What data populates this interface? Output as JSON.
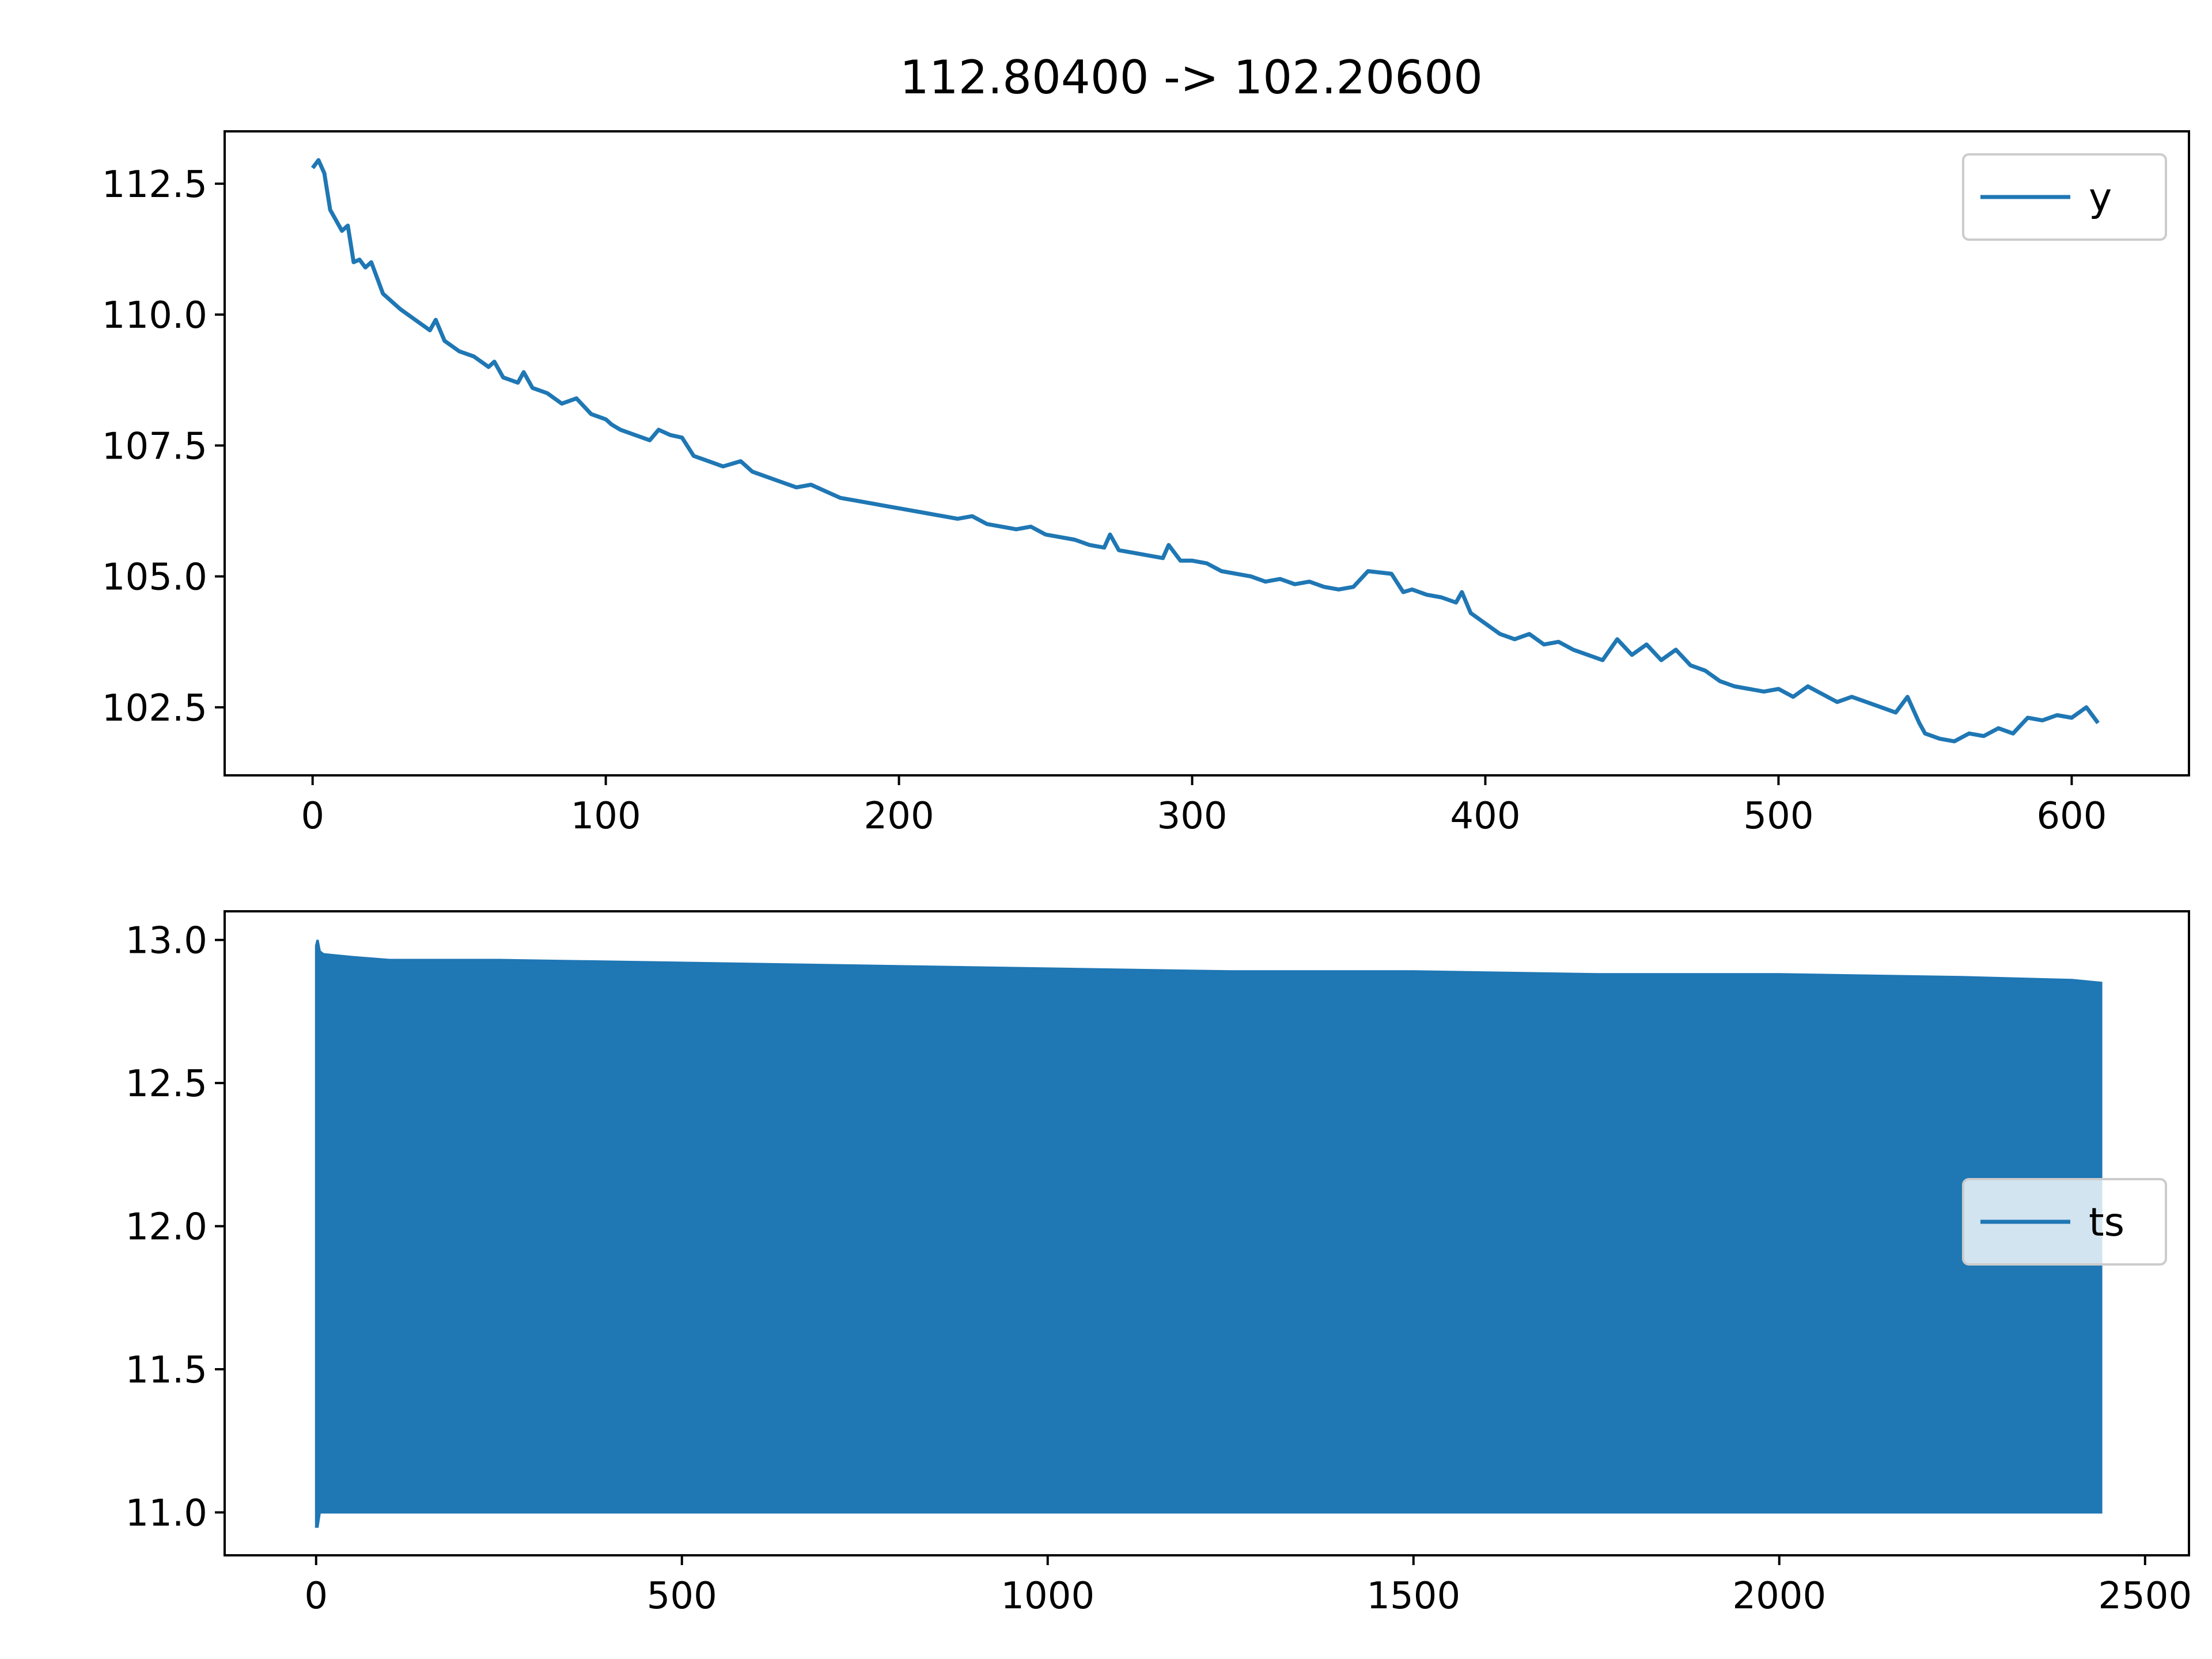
{
  "figure_title": "112.80400 -> 102.20600",
  "colors": {
    "series": "#1f77b4",
    "axis": "#000000",
    "legend_border": "#cccccc"
  },
  "chart_data": [
    {
      "type": "line",
      "title": "112.80400 -> 102.20600",
      "xlabel": "",
      "ylabel": "",
      "xlim": [
        -30,
        640
      ],
      "ylim": [
        101.2,
        113.5
      ],
      "xticks": [
        0,
        100,
        200,
        300,
        400,
        500,
        600
      ],
      "yticks": [
        102.5,
        105.0,
        107.5,
        110.0,
        112.5
      ],
      "xtick_labels": [
        "0",
        "100",
        "200",
        "300",
        "400",
        "500",
        "600"
      ],
      "ytick_labels": [
        "102.5",
        "105.0",
        "107.5",
        "110.0",
        "112.5"
      ],
      "grid": false,
      "legend_position": "top-right",
      "series": [
        {
          "name": "y",
          "x": [
            0,
            2,
            4,
            6,
            8,
            10,
            12,
            14,
            16,
            18,
            20,
            22,
            24,
            26,
            28,
            30,
            35,
            40,
            42,
            45,
            50,
            55,
            60,
            62,
            65,
            70,
            72,
            75,
            80,
            85,
            90,
            95,
            100,
            102,
            105,
            110,
            115,
            118,
            122,
            126,
            130,
            135,
            140,
            146,
            150,
            155,
            160,
            165,
            170,
            176,
            180,
            185,
            190,
            195,
            200,
            210,
            220,
            225,
            230,
            240,
            245,
            250,
            255,
            260,
            265,
            270,
            272,
            275,
            280,
            290,
            292,
            296,
            300,
            305,
            310,
            320,
            325,
            330,
            335,
            340,
            345,
            350,
            355,
            360,
            368,
            372,
            375,
            380,
            385,
            390,
            392,
            395,
            400,
            405,
            410,
            415,
            420,
            425,
            430,
            435,
            440,
            445,
            450,
            455,
            460,
            465,
            470,
            475,
            480,
            485,
            490,
            495,
            500,
            505,
            510,
            515,
            520,
            525,
            530,
            535,
            540,
            544,
            548,
            550,
            555,
            560,
            565,
            570,
            575,
            580,
            585,
            590,
            595,
            600,
            605,
            609
          ],
          "y": [
            112.8,
            112.95,
            112.7,
            112.0,
            111.8,
            111.6,
            111.7,
            111.0,
            111.05,
            110.9,
            111.0,
            110.7,
            110.4,
            110.3,
            110.2,
            110.1,
            109.9,
            109.7,
            109.9,
            109.5,
            109.3,
            109.2,
            109.0,
            109.1,
            108.8,
            108.7,
            108.9,
            108.6,
            108.5,
            108.3,
            108.4,
            108.1,
            108.0,
            107.9,
            107.8,
            107.7,
            107.6,
            107.8,
            107.7,
            107.65,
            107.3,
            107.2,
            107.1,
            107.2,
            107.0,
            106.9,
            106.8,
            106.7,
            106.75,
            106.6,
            106.5,
            106.45,
            106.4,
            106.35,
            106.3,
            106.2,
            106.1,
            106.15,
            106.0,
            105.9,
            105.95,
            105.8,
            105.75,
            105.7,
            105.6,
            105.55,
            105.8,
            105.5,
            105.45,
            105.35,
            105.6,
            105.3,
            105.3,
            105.25,
            105.1,
            105.0,
            104.9,
            104.95,
            104.85,
            104.9,
            104.8,
            104.75,
            104.8,
            105.1,
            105.05,
            104.7,
            104.75,
            104.65,
            104.6,
            104.5,
            104.7,
            104.3,
            104.1,
            103.9,
            103.8,
            103.9,
            103.7,
            103.75,
            103.6,
            103.5,
            103.4,
            103.8,
            103.5,
            103.7,
            103.4,
            103.6,
            103.3,
            103.2,
            103.0,
            102.9,
            102.85,
            102.8,
            102.85,
            102.7,
            102.9,
            102.75,
            102.6,
            102.7,
            102.6,
            102.5,
            102.4,
            102.7,
            102.2,
            102.0,
            101.9,
            101.85,
            102.0,
            101.95,
            102.1,
            102.0,
            102.3,
            102.25,
            102.35,
            102.3,
            102.5,
            102.2
          ]
        }
      ]
    },
    {
      "type": "area",
      "title": "",
      "xlabel": "",
      "ylabel": "",
      "xlim": [
        -125,
        2560
      ],
      "ylim": [
        10.85,
        13.1
      ],
      "xticks": [
        0,
        500,
        1000,
        1500,
        2000,
        2500
      ],
      "yticks": [
        11.0,
        11.5,
        12.0,
        12.5,
        13.0
      ],
      "xtick_labels": [
        "0",
        "500",
        "1000",
        "1500",
        "2000",
        "2500"
      ],
      "ytick_labels": [
        "11.0",
        "11.5",
        "12.0",
        "12.5",
        "13.0"
      ],
      "grid": false,
      "legend_position": "center-right",
      "series": [
        {
          "name": "ts",
          "x": [
            0,
            2,
            5,
            10,
            50,
            100,
            250,
            500,
            750,
            1000,
            1250,
            1500,
            1750,
            2000,
            2250,
            2400,
            2440
          ],
          "upper": [
            12.98,
            13.0,
            12.96,
            12.95,
            12.94,
            12.93,
            12.93,
            12.92,
            12.91,
            12.9,
            12.89,
            12.89,
            12.88,
            12.88,
            12.87,
            12.86,
            12.85
          ],
          "lower": [
            10.95,
            10.95,
            11.0,
            11.0,
            11.0,
            11.0,
            11.0,
            11.0,
            11.0,
            11.0,
            11.0,
            11.0,
            11.0,
            11.0,
            11.0,
            11.0,
            11.0
          ]
        }
      ]
    }
  ]
}
